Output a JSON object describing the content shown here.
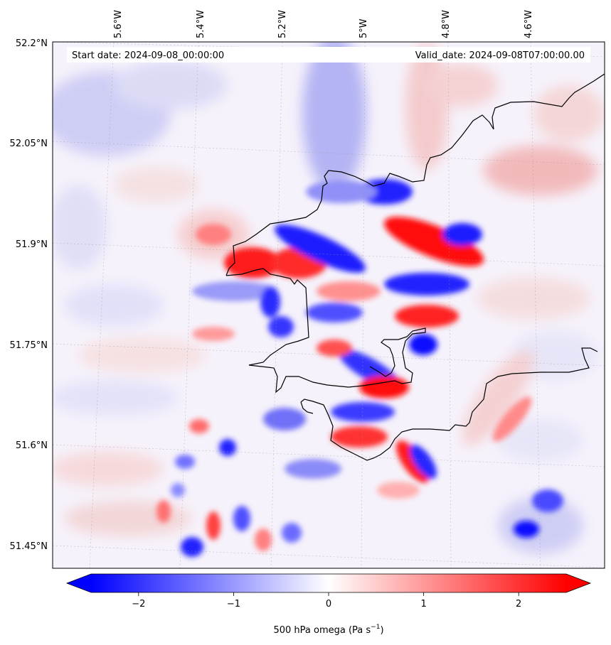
{
  "map": {
    "start_date": "Start date: 2024-09-08_00:00:00",
    "valid_date": "Valid_date: 2024-09-08T07:00:00.00",
    "lon_labels": [
      "5.6°W",
      "5.4°W",
      "5.2°W",
      "5°W",
      "4.8°W",
      "4.6°W"
    ],
    "lat_labels": [
      "52.2°N",
      "52.05°N",
      "51.9°N",
      "51.75°N",
      "51.6°N",
      "51.45°N"
    ],
    "field": "500 hPa omega",
    "colormap": "bwr",
    "coastline_color": "#000000"
  },
  "colorbar": {
    "label_main": "500 hPa omega (Pa s",
    "label_exp": "−1",
    "label_close": ")",
    "ticks": [
      "−2",
      "−1",
      "0",
      "1",
      "2"
    ],
    "tick_values": [
      -2,
      -1,
      0,
      1,
      2
    ],
    "range": [
      -2.5,
      2.5
    ],
    "extend": "both",
    "low_color": "#0000ff",
    "mid_color": "#ffffff",
    "high_color": "#ff0000"
  }
}
